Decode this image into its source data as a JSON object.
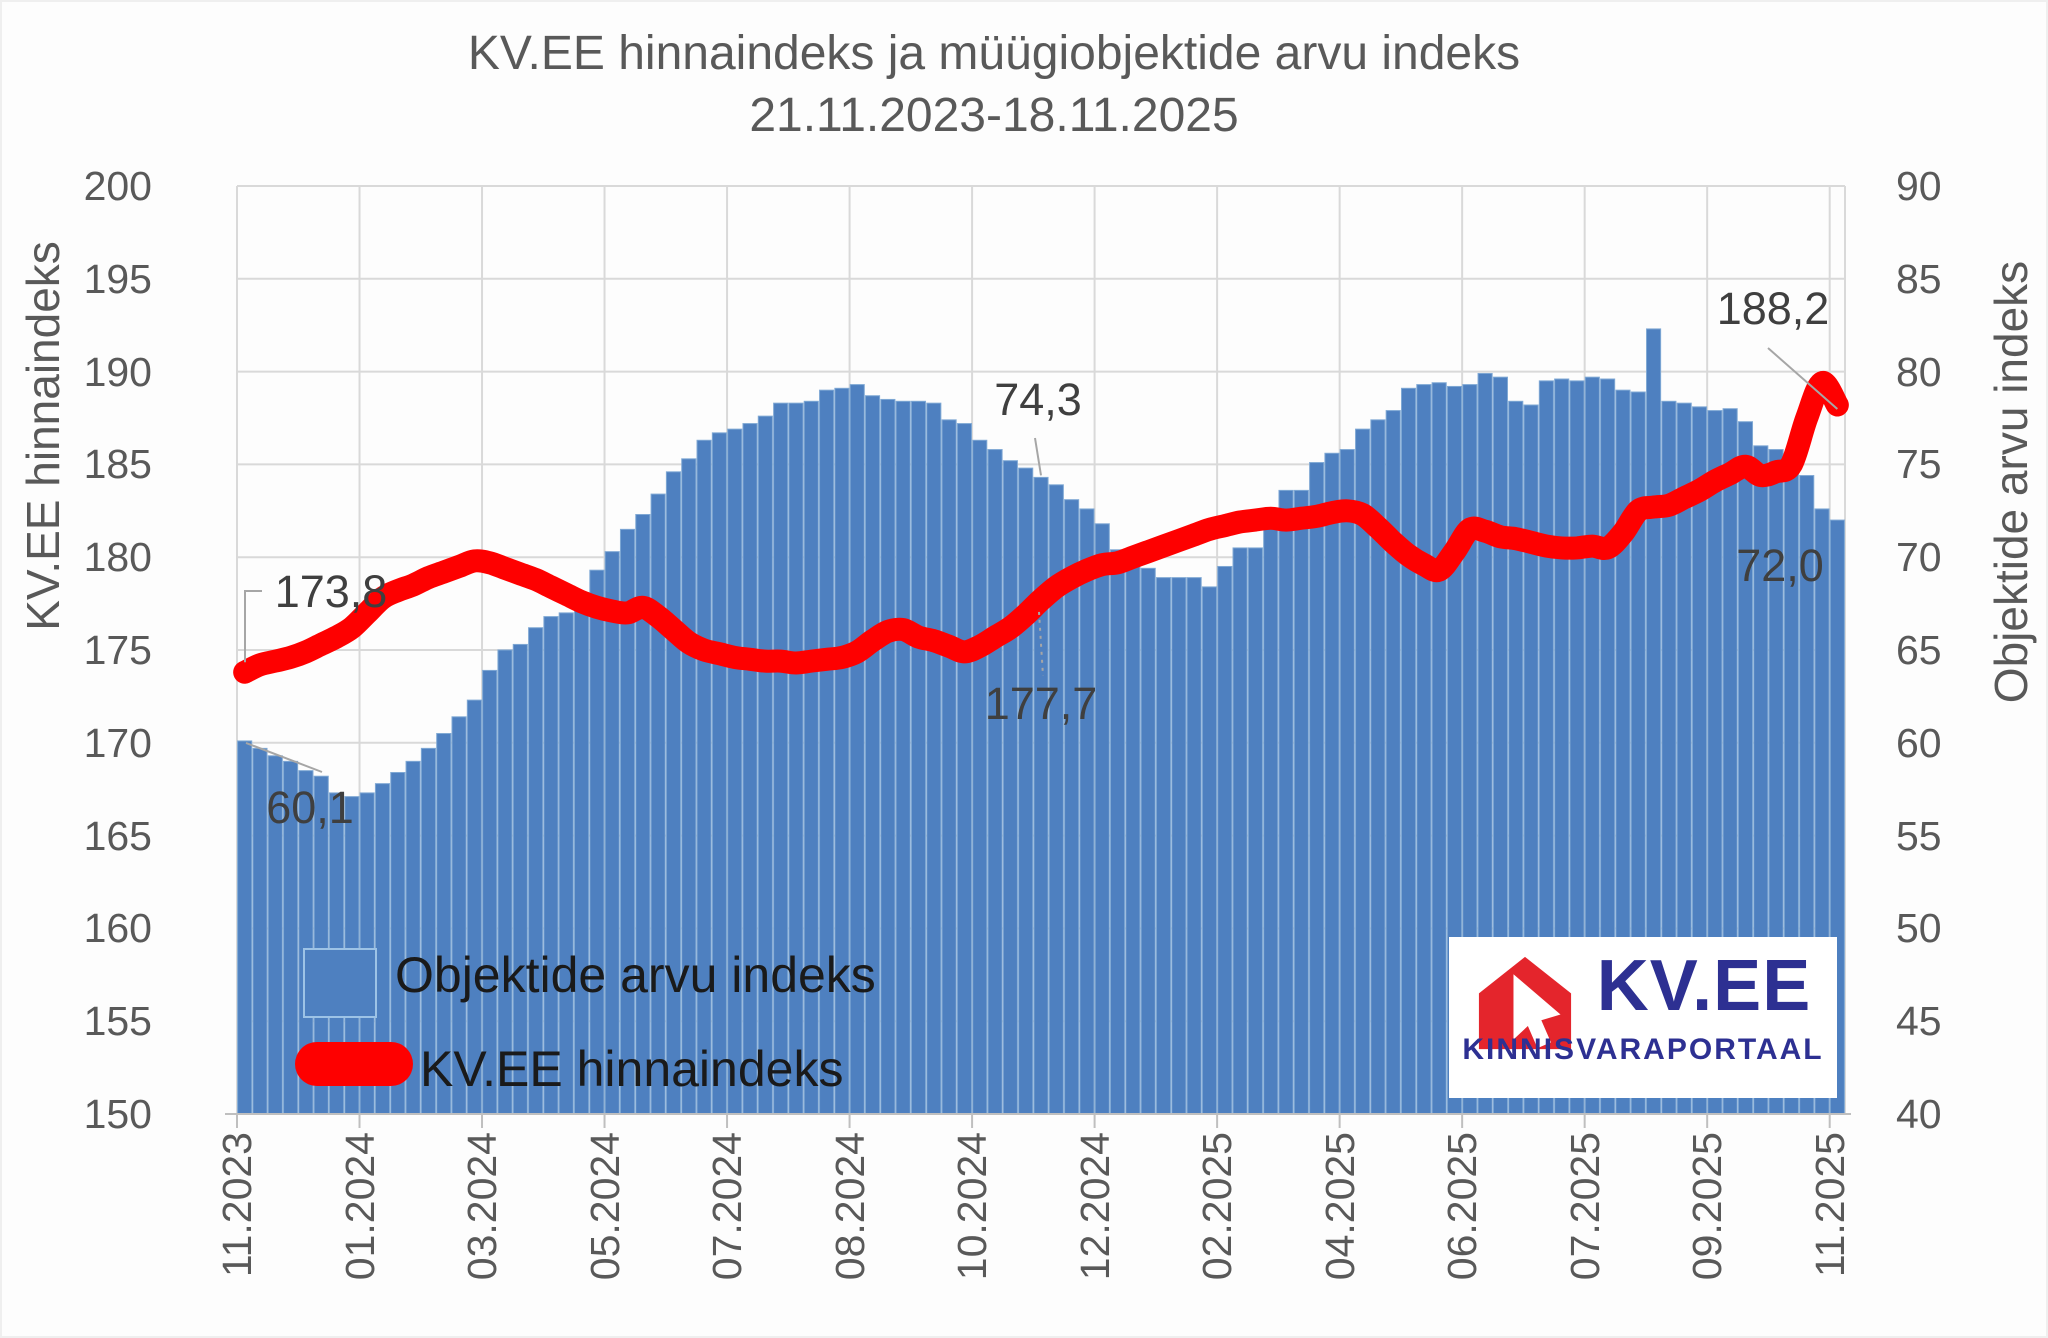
{
  "title": {
    "line1": "KV.EE hinnaindeks ja müügiobjektide arvu indeks",
    "line2": "21.11.2023-18.11.2025"
  },
  "left_axis": {
    "label": "KV.EE hinnaindeks",
    "min": 150,
    "max": 200,
    "ticks": [
      "200",
      "195",
      "190",
      "185",
      "180",
      "175",
      "170",
      "165",
      "160",
      "155",
      "150"
    ]
  },
  "right_axis": {
    "label": "Objektide arvu indeks",
    "min": 40,
    "max": 90,
    "ticks": [
      "90",
      "85",
      "80",
      "75",
      "70",
      "65",
      "60",
      "55",
      "50",
      "45",
      "40"
    ]
  },
  "x_axis": {
    "labels": [
      "11.2023",
      "01.2024",
      "03.2024",
      "05.2024",
      "07.2024",
      "08.2024",
      "10.2024",
      "12.2024",
      "02.2025",
      "04.2025",
      "06.2025",
      "07.2025",
      "09.2025",
      "11.2025"
    ],
    "label_every_n_points": 8
  },
  "legend": {
    "bar_label": "Objektide arvu indeks",
    "line_label": "KV.EE hinnaindeks"
  },
  "annotations": [
    {
      "id": "price-first",
      "text": "173,8",
      "series": "KV.EE hinnaindeks",
      "point_index": 0,
      "value": 173.8
    },
    {
      "id": "objects-first",
      "text": "60,1",
      "series": "Objektide arvu indeks",
      "point_index": 0,
      "value": 60.1
    },
    {
      "id": "objects-yearago",
      "text": "74,3",
      "series": "Objektide arvu indeks",
      "point_index": 52,
      "value": 74.3
    },
    {
      "id": "price-yearago",
      "text": "177,7",
      "series": "KV.EE hinnaindeks",
      "point_index": 52,
      "value": 177.7
    },
    {
      "id": "price-last",
      "text": "188,2",
      "series": "KV.EE hinnaindeks",
      "point_index": 104,
      "value": 188.2
    },
    {
      "id": "objects-last",
      "text": "72,0",
      "series": "Objektide arvu indeks",
      "point_index": 104,
      "value": 72.0
    }
  ],
  "logo": {
    "name": "KV.EE",
    "tagline": "KINNISVARAPORTAAL"
  },
  "colors": {
    "bar": "#4e80c0",
    "bar_edge": "#7fa8d4",
    "line": "#fe0000",
    "grid": "#d9d9d9",
    "axis_line": "#bfbfbf",
    "axis_text": "#595959",
    "annotation_text": "#3f3f3f",
    "leader": "#a6a6a6",
    "logo_navy": "#2d3092",
    "logo_red": "#e4252c",
    "background": "#fdfdfd"
  },
  "chart_data": {
    "type": "combo",
    "title": "KV.EE hinnaindeks ja müügiobjektide arvu indeks 21.11.2023-18.11.2025",
    "period": {
      "start": "21.11.2023",
      "end": "18.11.2025",
      "frequency": "weekly",
      "n_points": 105
    },
    "x_tick_labels": [
      "11.2023",
      "01.2024",
      "03.2024",
      "05.2024",
      "07.2024",
      "08.2024",
      "10.2024",
      "12.2024",
      "02.2025",
      "04.2025",
      "06.2025",
      "07.2025",
      "09.2025",
      "11.2025"
    ],
    "left_axis_range": [
      150,
      200
    ],
    "right_axis_range": [
      40,
      90
    ],
    "grid": true,
    "legend_position": "inside-bottom-left",
    "series": [
      {
        "name": "Objektide arvu indeks",
        "type": "bar",
        "axis": "right",
        "values": [
          60.1,
          59.7,
          59.3,
          59.0,
          58.5,
          58.2,
          57.3,
          57.1,
          57.3,
          57.8,
          58.4,
          59.0,
          59.7,
          60.5,
          61.4,
          62.3,
          63.9,
          65.0,
          65.3,
          66.2,
          66.8,
          67.0,
          68.1,
          69.3,
          70.3,
          71.5,
          72.3,
          73.4,
          74.6,
          75.3,
          76.3,
          76.7,
          76.9,
          77.2,
          77.6,
          78.3,
          78.3,
          78.4,
          79.0,
          79.1,
          79.3,
          78.7,
          78.5,
          78.4,
          78.4,
          78.3,
          77.4,
          77.2,
          76.3,
          75.8,
          75.2,
          74.8,
          74.3,
          73.9,
          73.1,
          72.6,
          71.8,
          70.4,
          70.4,
          69.4,
          68.9,
          68.9,
          68.9,
          68.4,
          69.5,
          70.5,
          70.5,
          72.0,
          73.6,
          73.6,
          75.1,
          75.6,
          75.8,
          76.9,
          77.4,
          77.9,
          79.1,
          79.3,
          79.4,
          79.2,
          79.3,
          79.9,
          79.7,
          78.4,
          78.2,
          79.5,
          79.6,
          79.5,
          79.7,
          79.6,
          79.0,
          78.9,
          82.3,
          78.4,
          78.3,
          78.1,
          77.9,
          78.0,
          77.3,
          76.0,
          75.8,
          75.6,
          74.4,
          72.6,
          72.0
        ]
      },
      {
        "name": "KV.EE hinnaindeks",
        "type": "line",
        "axis": "left",
        "values": [
          173.8,
          174.2,
          174.4,
          174.6,
          174.9,
          175.3,
          175.7,
          176.2,
          177.0,
          177.8,
          178.2,
          178.5,
          178.9,
          179.2,
          179.5,
          179.8,
          179.7,
          179.4,
          179.1,
          178.8,
          178.4,
          178.0,
          177.6,
          177.3,
          177.1,
          177.0,
          177.3,
          176.8,
          176.1,
          175.4,
          175.0,
          174.8,
          174.6,
          174.5,
          174.4,
          174.4,
          174.3,
          174.4,
          174.5,
          174.6,
          174.9,
          175.5,
          176.0,
          176.1,
          175.7,
          175.5,
          175.2,
          174.9,
          175.2,
          175.7,
          176.2,
          176.9,
          177.7,
          178.4,
          178.9,
          179.3,
          179.6,
          179.7,
          180.0,
          180.3,
          180.6,
          180.9,
          181.2,
          181.5,
          181.7,
          181.9,
          182.0,
          182.1,
          182.0,
          182.1,
          182.2,
          182.4,
          182.5,
          182.3,
          181.6,
          180.8,
          180.1,
          179.6,
          179.3,
          180.3,
          181.5,
          181.4,
          181.1,
          181.0,
          180.8,
          180.6,
          180.5,
          180.5,
          180.6,
          180.5,
          181.3,
          182.5,
          182.7,
          182.8,
          183.2,
          183.6,
          184.1,
          184.5,
          184.9,
          184.4,
          184.6,
          185.0,
          187.5,
          189.4,
          188.2
        ]
      }
    ]
  }
}
